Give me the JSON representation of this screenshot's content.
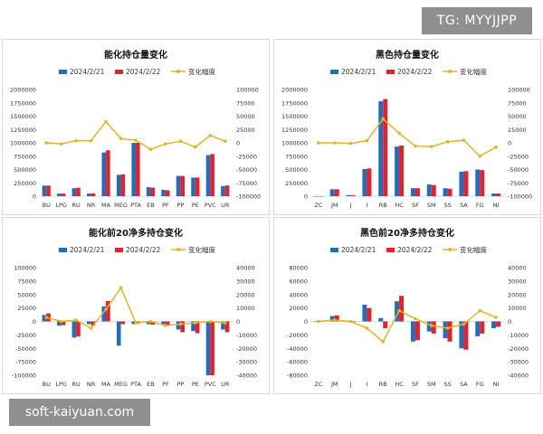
{
  "overlays": {
    "top_badge": "TG: MYYJJPP",
    "bottom_badge": "soft-kaiyuan.com"
  },
  "colors": {
    "series1": "#1f6fbf",
    "series2": "#e8202a",
    "line": "#e6b422"
  },
  "chart_data": [
    {
      "type": "bar",
      "title": "能化持仓量变化",
      "legend": [
        "2024/2/21",
        "2024/2/22",
        "变化幅度"
      ],
      "categories": [
        "BU",
        "LPG",
        "RU",
        "NR",
        "MA",
        "MEG",
        "PTA",
        "EB",
        "PF",
        "PP",
        "PE",
        "PVC",
        "UR"
      ],
      "series": [
        {
          "name": "2024/2/21",
          "values": [
            200000,
            50000,
            150000,
            50000,
            820000,
            400000,
            1000000,
            170000,
            120000,
            380000,
            350000,
            770000,
            190000
          ]
        },
        {
          "name": "2024/2/22",
          "values": [
            200000,
            50000,
            160000,
            55000,
            860000,
            410000,
            1000000,
            160000,
            110000,
            380000,
            350000,
            790000,
            200000
          ]
        }
      ],
      "line": {
        "name": "变化幅度",
        "values": [
          0,
          -2000,
          4000,
          4000,
          40000,
          8000,
          5000,
          -12000,
          -2000,
          3000,
          -8000,
          14000,
          3000
        ]
      },
      "ylim_left": [
        0,
        2000000
      ],
      "yticks_left": [
        0,
        250000,
        500000,
        750000,
        1000000,
        1250000,
        1500000,
        1750000,
        2000000
      ],
      "ylim_right": [
        -100000,
        100000
      ],
      "yticks_right": [
        -100000,
        -75000,
        -50000,
        -25000,
        0,
        25000,
        50000,
        75000,
        100000
      ]
    },
    {
      "type": "bar",
      "title": "黑色持仓量变化",
      "legend": [
        "2024/2/21",
        "2024/2/22",
        "变化幅度"
      ],
      "categories": [
        "ZC",
        "JM",
        "J",
        "I",
        "RB",
        "HC",
        "SF",
        "SM",
        "SS",
        "SA",
        "FG",
        "NI"
      ],
      "series": [
        {
          "name": "2024/2/21",
          "values": [
            0,
            130000,
            20000,
            510000,
            1780000,
            930000,
            150000,
            220000,
            150000,
            460000,
            500000,
            50000
          ]
        },
        {
          "name": "2024/2/22",
          "values": [
            0,
            130000,
            20000,
            520000,
            1820000,
            950000,
            150000,
            210000,
            140000,
            470000,
            490000,
            50000
          ]
        }
      ],
      "line": {
        "name": "变化幅度",
        "values": [
          0,
          0,
          -1000,
          4000,
          45000,
          18000,
          -6000,
          -7000,
          2000,
          5000,
          -25000,
          -8000
        ]
      },
      "ylim_left": [
        0,
        2000000
      ],
      "yticks_left": [
        0,
        250000,
        500000,
        750000,
        1000000,
        1250000,
        1500000,
        1750000,
        2000000
      ],
      "ylim_right": [
        -100000,
        100000
      ],
      "yticks_right": [
        -100000,
        -75000,
        -50000,
        -25000,
        0,
        25000,
        50000,
        75000,
        100000
      ]
    },
    {
      "type": "bar",
      "title": "能化前20净多持仓变化",
      "legend": [
        "2024/2/21",
        "2024/2/22",
        "变化幅度"
      ],
      "categories": [
        "BU",
        "LPG",
        "RU",
        "NR",
        "MA",
        "MEG",
        "PTA",
        "EB",
        "PF",
        "PP",
        "PE",
        "PVC",
        "UR"
      ],
      "series": [
        {
          "name": "2024/2/21",
          "values": [
            12000,
            -8000,
            -30000,
            -5000,
            28000,
            -45000,
            -5000,
            -5000,
            -5000,
            -15000,
            -18000,
            -100000,
            -15000
          ]
        },
        {
          "name": "2024/2/22",
          "values": [
            15000,
            -7000,
            -28000,
            -8000,
            38000,
            -5000,
            -4000,
            -6000,
            -8000,
            -20000,
            -22000,
            -100000,
            -20000
          ]
        }
      ],
      "line": {
        "name": "变化幅度",
        "values": [
          3000,
          0,
          1000,
          -5000,
          9000,
          25000,
          -1000,
          0,
          -3000,
          -2000,
          -1000,
          0,
          -1000
        ]
      },
      "ylim_left": [
        -100000,
        100000
      ],
      "yticks_left": [
        -100000,
        -75000,
        -50000,
        -25000,
        0,
        25000,
        50000,
        75000,
        100000
      ],
      "ylim_right": [
        -40000,
        40000
      ],
      "yticks_right": [
        -40000,
        -30000,
        -20000,
        -10000,
        0,
        10000,
        20000,
        30000,
        40000
      ]
    },
    {
      "type": "bar",
      "title": "黑色前20净多持仓变化",
      "legend": [
        "2024/2/21",
        "2024/2/22",
        "变化幅度"
      ],
      "categories": [
        "ZC",
        "JM",
        "J",
        "I",
        "RB",
        "HC",
        "SF",
        "SM",
        "SS",
        "SA",
        "FG",
        "NI"
      ],
      "series": [
        {
          "name": "2024/2/21",
          "values": [
            0,
            8000,
            -1000,
            25000,
            5000,
            30000,
            -30000,
            -15000,
            -25000,
            -40000,
            -22000,
            -10000
          ]
        },
        {
          "name": "2024/2/22",
          "values": [
            0,
            9000,
            -1000,
            20000,
            -10000,
            38000,
            -28000,
            -18000,
            -30000,
            -42000,
            -18000,
            -8000
          ]
        }
      ],
      "line": {
        "name": "变化幅度",
        "values": [
          0,
          1000,
          0,
          -5000,
          -15000,
          8000,
          2000,
          -3000,
          -5000,
          -2000,
          8000,
          3000
        ]
      },
      "ylim_left": [
        -80000,
        80000
      ],
      "yticks_left": [
        -80000,
        -60000,
        -40000,
        -20000,
        0,
        20000,
        40000,
        60000,
        80000
      ],
      "ylim_right": [
        -40000,
        40000
      ],
      "yticks_right": [
        -40000,
        -30000,
        -20000,
        -10000,
        0,
        10000,
        20000,
        30000,
        40000
      ]
    }
  ]
}
